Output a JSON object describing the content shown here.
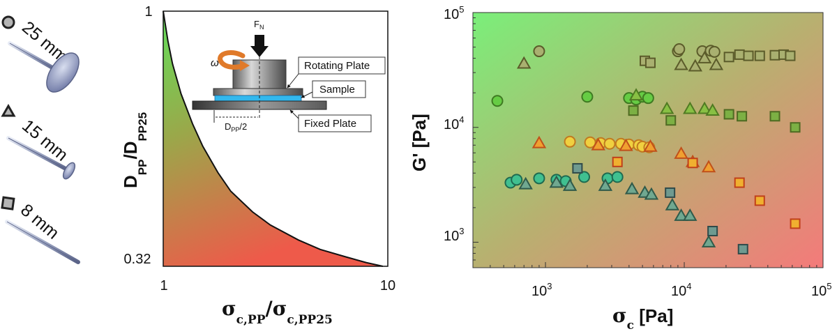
{
  "colors": {
    "green": "#6fe06f",
    "red": "#f07a78",
    "olive": "#a7b06a",
    "orange": "#e07a2a",
    "blue": "#44bbee"
  },
  "geometries": [
    {
      "label": "25 mm",
      "marker": "circle"
    },
    {
      "label": "15 mm",
      "marker": "triangle"
    },
    {
      "label": "8 mm",
      "marker": "square"
    }
  ],
  "inset": {
    "force_label": "F",
    "force_sub": "N",
    "omega_label": "ω",
    "rotating_plate": "Rotating Plate",
    "sample": "Sample",
    "fixed_plate": "Fixed Plate",
    "dpp_label": "D",
    "dpp_sub": "PP",
    "dpp_suffix": "/2"
  },
  "chart_data": [
    {
      "type": "line",
      "xscale": "log",
      "xlim": [
        1,
        10
      ],
      "ylim": [
        0.32,
        1
      ],
      "xticks": [
        "1",
        "10"
      ],
      "yticks": [
        "1",
        "0.32"
      ],
      "xlabel_main": "σ",
      "xlabel_sub1": "c,PP",
      "xlabel_div": "/σ",
      "xlabel_sub2": "c,PP25",
      "ylabel_main": "D",
      "ylabel_sub1": "PP",
      "ylabel_div": "/D",
      "ylabel_sub2": "PP25",
      "curve": [
        {
          "x": 1.0,
          "y": 1.0
        },
        {
          "x": 1.05,
          "y": 0.92
        },
        {
          "x": 1.1,
          "y": 0.86
        },
        {
          "x": 1.2,
          "y": 0.78
        },
        {
          "x": 1.35,
          "y": 0.7
        },
        {
          "x": 1.5,
          "y": 0.64
        },
        {
          "x": 1.75,
          "y": 0.57
        },
        {
          "x": 2.0,
          "y": 0.52
        },
        {
          "x": 2.5,
          "y": 0.465
        },
        {
          "x": 3.0,
          "y": 0.43
        },
        {
          "x": 4.0,
          "y": 0.39
        },
        {
          "x": 5.0,
          "y": 0.365
        },
        {
          "x": 6.5,
          "y": 0.345
        },
        {
          "x": 8.0,
          "y": 0.33
        },
        {
          "x": 9.5,
          "y": 0.32
        }
      ]
    },
    {
      "type": "scatter",
      "xscale": "log",
      "yscale": "log",
      "xlim": [
        300,
        100000
      ],
      "ylim": [
        600,
        100000
      ],
      "xtick_mantissa": "10",
      "xtick_exponents": [
        "3",
        "4",
        "5"
      ],
      "ytick_mantissa": "10",
      "ytick_exponents": [
        "3",
        "4",
        "5"
      ],
      "xlabel_main": "σ",
      "xlabel_sub": "c",
      "xlabel_unit": " [Pa]",
      "ylabel": "G' [Pa]",
      "series": [
        {
          "name": "olive circles",
          "marker": "circle",
          "fill": "#a9b070",
          "stroke": "#5b5b2a",
          "points": [
            [
              900,
              46000
            ],
            [
              9000,
              46000
            ],
            [
              9200,
              48000
            ],
            [
              13500,
              46000
            ],
            [
              15500,
              46500
            ],
            [
              16500,
              45500
            ]
          ]
        },
        {
          "name": "olive triangles",
          "marker": "triangle",
          "fill": "#a9b070",
          "stroke": "#5b5b2a",
          "points": [
            [
              700,
              36000
            ],
            [
              9500,
              35000
            ],
            [
              12000,
              34000
            ],
            [
              14000,
              40000
            ],
            [
              17000,
              35000
            ]
          ]
        },
        {
          "name": "olive squares",
          "marker": "square",
          "fill": "#a9b070",
          "stroke": "#5b5b2a",
          "points": [
            [
              5200,
              38000
            ],
            [
              5700,
              36500
            ],
            [
              21000,
              41000
            ],
            [
              25000,
              43000
            ],
            [
              29000,
              42000
            ],
            [
              35000,
              42000
            ],
            [
              45000,
              42500
            ],
            [
              52000,
              43000
            ],
            [
              58000,
              42000
            ]
          ]
        },
        {
          "name": "green circles",
          "marker": "circle",
          "fill": "#66cc44",
          "stroke": "#3f7a22",
          "points": [
            [
              450,
              17000
            ],
            [
              2000,
              18500
            ],
            [
              4000,
              18000
            ],
            [
              4500,
              17500
            ],
            [
              5000,
              18500
            ],
            [
              5500,
              18000
            ]
          ]
        },
        {
          "name": "green triangles",
          "marker": "triangle",
          "fill": "#88c044",
          "stroke": "#4f7a22",
          "points": [
            [
              4500,
              19000
            ],
            [
              7500,
              14500
            ],
            [
              11000,
              14500
            ],
            [
              14000,
              14500
            ],
            [
              16000,
              14000
            ]
          ]
        },
        {
          "name": "green squares",
          "marker": "square",
          "fill": "#7cb044",
          "stroke": "#4f6a22",
          "points": [
            [
              4300,
              14000
            ],
            [
              8000,
              11500
            ],
            [
              21000,
              13000
            ],
            [
              26000,
              12500
            ],
            [
              45000,
              12500
            ],
            [
              63000,
              10000
            ]
          ]
        },
        {
          "name": "yellow circles",
          "marker": "circle",
          "fill": "#f0d040",
          "stroke": "#c07a20",
          "points": [
            [
              1500,
              7500
            ],
            [
              2100,
              7400
            ],
            [
              2500,
              7300
            ],
            [
              2900,
              7200
            ],
            [
              3500,
              7200
            ],
            [
              4000,
              7100
            ],
            [
              4700,
              7000
            ],
            [
              5000,
              6800
            ],
            [
              5600,
              6700
            ]
          ]
        },
        {
          "name": "orange triangles",
          "marker": "triangle",
          "fill": "#f0a030",
          "stroke": "#c0501a",
          "points": [
            [
              900,
              7300
            ],
            [
              2400,
              7000
            ],
            [
              3800,
              6900
            ],
            [
              5700,
              6800
            ],
            [
              9500,
              5900
            ],
            [
              11500,
              5000
            ],
            [
              15000,
              4500
            ]
          ]
        },
        {
          "name": "orange squares",
          "marker": "square",
          "fill": "#f0b030",
          "stroke": "#c0401a",
          "points": [
            [
              3300,
              5000
            ],
            [
              11500,
              4900
            ],
            [
              25000,
              3300
            ],
            [
              35000,
              2300
            ],
            [
              63000,
              1450
            ]
          ]
        },
        {
          "name": "teal circles",
          "marker": "circle",
          "fill": "#40c090",
          "stroke": "#1f6a50",
          "points": [
            [
              560,
              3300
            ],
            [
              620,
              3500
            ],
            [
              900,
              3600
            ],
            [
              1200,
              3500
            ],
            [
              1400,
              3400
            ],
            [
              1900,
              3700
            ],
            [
              2800,
              3600
            ],
            [
              3300,
              3700
            ]
          ]
        },
        {
          "name": "teal triangles",
          "marker": "triangle",
          "fill": "#70a890",
          "stroke": "#2f5a4a",
          "points": [
            [
              720,
              3200
            ],
            [
              1200,
              3300
            ],
            [
              1500,
              3100
            ],
            [
              2700,
              3100
            ],
            [
              4200,
              2900
            ],
            [
              5200,
              2700
            ],
            [
              5800,
              2600
            ],
            [
              8200,
              2100
            ],
            [
              9500,
              1700
            ],
            [
              11000,
              1700
            ],
            [
              15000,
              1000
            ]
          ]
        },
        {
          "name": "teal squares",
          "marker": "square",
          "fill": "#6f9a90",
          "stroke": "#2f4a4a",
          "points": [
            [
              1700,
              4400
            ],
            [
              7900,
              2700
            ],
            [
              16000,
              1250
            ],
            [
              26500,
              870
            ]
          ]
        }
      ]
    }
  ]
}
